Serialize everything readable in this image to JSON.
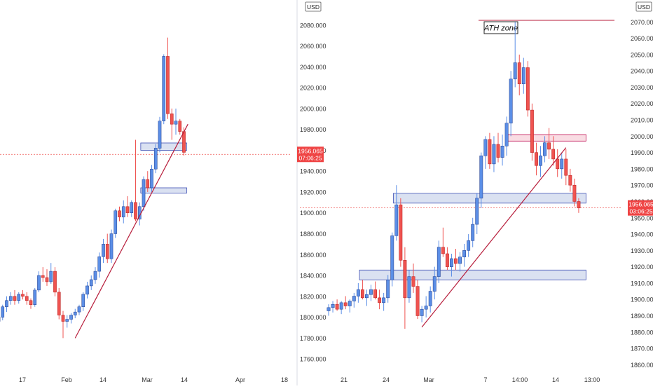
{
  "chart_data": [
    {
      "type": "candlestick",
      "title": "",
      "currency": "USD",
      "ylim": [
        1750,
        2100
      ],
      "y_ticks": [
        "1760.000",
        "1780.000",
        "1800.000",
        "1820.000",
        "1840.000",
        "1860.000",
        "1880.000",
        "1900.000",
        "1920.000",
        "1940.000",
        "1960.000",
        "1980.000",
        "2000.000",
        "2020.000",
        "2040.000",
        "2060.000",
        "2080.000"
      ],
      "x_ticks": [
        "17",
        "Feb",
        "14",
        "Mar",
        "14",
        "Apr",
        "18"
      ],
      "grid": false,
      "price_marker": {
        "price": 1956.065,
        "label": "1956.065",
        "timer": "07:06:25"
      },
      "candles": [
        [
          1796,
          1802,
          1790,
          1800
        ],
        [
          1800,
          1812,
          1797,
          1810
        ],
        [
          1810,
          1820,
          1805,
          1816
        ],
        [
          1816,
          1824,
          1812,
          1820
        ],
        [
          1820,
          1826,
          1812,
          1816
        ],
        [
          1816,
          1824,
          1813,
          1822
        ],
        [
          1822,
          1826,
          1817,
          1820
        ],
        [
          1820,
          1824,
          1812,
          1816
        ],
        [
          1816,
          1818,
          1808,
          1812
        ],
        [
          1812,
          1828,
          1810,
          1826
        ],
        [
          1826,
          1844,
          1824,
          1840
        ],
        [
          1840,
          1848,
          1834,
          1838
        ],
        [
          1838,
          1846,
          1830,
          1834
        ],
        [
          1834,
          1852,
          1832,
          1844
        ],
        [
          1844,
          1848,
          1820,
          1824
        ],
        [
          1824,
          1828,
          1798,
          1802
        ],
        [
          1802,
          1806,
          1780,
          1796
        ],
        [
          1796,
          1802,
          1790,
          1798
        ],
        [
          1798,
          1804,
          1794,
          1802
        ],
        [
          1802,
          1808,
          1799,
          1805
        ],
        [
          1805,
          1812,
          1802,
          1810
        ],
        [
          1810,
          1824,
          1806,
          1822
        ],
        [
          1822,
          1834,
          1818,
          1830
        ],
        [
          1830,
          1840,
          1826,
          1836
        ],
        [
          1836,
          1848,
          1832,
          1844
        ],
        [
          1844,
          1862,
          1838,
          1858
        ],
        [
          1858,
          1875,
          1852,
          1870
        ],
        [
          1870,
          1880,
          1852,
          1856
        ],
        [
          1856,
          1884,
          1852,
          1880
        ],
        [
          1880,
          1904,
          1876,
          1902
        ],
        [
          1902,
          1906,
          1892,
          1896
        ],
        [
          1896,
          1912,
          1890,
          1906
        ],
        [
          1906,
          1916,
          1896,
          1900
        ],
        [
          1900,
          1912,
          1896,
          1910
        ],
        [
          1910,
          1970,
          1892,
          1894
        ],
        [
          1894,
          1910,
          1888,
          1906
        ],
        [
          1906,
          1935,
          1902,
          1932
        ],
        [
          1932,
          1940,
          1920,
          1924
        ],
        [
          1924,
          1946,
          1920,
          1942
        ],
        [
          1942,
          1966,
          1938,
          1962
        ],
        [
          1962,
          1992,
          1958,
          1988
        ],
        [
          1988,
          2052,
          1985,
          2050
        ],
        [
          2050,
          2068,
          1990,
          1995
        ],
        [
          1995,
          2000,
          1970,
          1985
        ],
        [
          1985,
          2000,
          1975,
          1988
        ],
        [
          1988,
          1990,
          1975,
          1978
        ],
        [
          1978,
          1982,
          1955,
          1958
        ]
      ],
      "zones": [
        {
          "from_index": 36,
          "to_index": 46,
          "low": 1960,
          "high": 1967
        },
        {
          "from_index": 36,
          "to_index": 46,
          "low": 1919,
          "high": 1924
        }
      ],
      "trendlines": [
        {
          "from_index": 19,
          "from_price": 1780,
          "to_index": 47,
          "to_price": 1985
        }
      ]
    },
    {
      "type": "candlestick",
      "title": "",
      "currency": "USD",
      "ylim": [
        1855,
        2080
      ],
      "y_ticks": [
        "1860.000",
        "1870.000",
        "1880.000",
        "1890.000",
        "1900.000",
        "1910.000",
        "1920.000",
        "1930.000",
        "1940.000",
        "1950.000",
        "1960.000",
        "1970.000",
        "1980.000",
        "1990.000",
        "2000.000",
        "2010.000",
        "2020.000",
        "2030.000",
        "2040.000",
        "2050.000",
        "2060.000",
        "2070.000"
      ],
      "x_ticks": [
        "21",
        "24",
        "Mar",
        "7",
        "14:00",
        "14",
        "13:00"
      ],
      "grid": false,
      "price_marker": {
        "price": 1956.065,
        "label": "1956.065",
        "timer": "03:06:25"
      },
      "candles": [
        [
          1893,
          1897,
          1890,
          1895
        ],
        [
          1895,
          1899,
          1892,
          1897
        ],
        [
          1897,
          1900,
          1893,
          1894
        ],
        [
          1894,
          1899,
          1891,
          1898
        ],
        [
          1898,
          1902,
          1894,
          1896
        ],
        [
          1896,
          1900,
          1892,
          1899
        ],
        [
          1899,
          1904,
          1895,
          1902
        ],
        [
          1902,
          1910,
          1898,
          1906
        ],
        [
          1906,
          1912,
          1900,
          1901
        ],
        [
          1901,
          1906,
          1896,
          1903
        ],
        [
          1903,
          1909,
          1899,
          1906
        ],
        [
          1906,
          1911,
          1900,
          1901
        ],
        [
          1901,
          1906,
          1894,
          1898
        ],
        [
          1898,
          1904,
          1893,
          1901
        ],
        [
          1901,
          1915,
          1898,
          1912
        ],
        [
          1912,
          1941,
          1908,
          1939
        ],
        [
          1939,
          1970,
          1936,
          1958
        ],
        [
          1958,
          1962,
          1920,
          1924
        ],
        [
          1924,
          1932,
          1882,
          1901
        ],
        [
          1901,
          1918,
          1898,
          1914
        ],
        [
          1914,
          1922,
          1904,
          1908
        ],
        [
          1908,
          1912,
          1888,
          1890
        ],
        [
          1890,
          1896,
          1886,
          1894
        ],
        [
          1894,
          1902,
          1889,
          1896
        ],
        [
          1896,
          1908,
          1892,
          1905
        ],
        [
          1905,
          1920,
          1900,
          1914
        ],
        [
          1914,
          1936,
          1910,
          1932
        ],
        [
          1932,
          1944,
          1926,
          1928
        ],
        [
          1928,
          1932,
          1918,
          1920
        ],
        [
          1920,
          1928,
          1914,
          1925
        ],
        [
          1925,
          1931,
          1918,
          1922
        ],
        [
          1922,
          1929,
          1917,
          1926
        ],
        [
          1926,
          1934,
          1920,
          1930
        ],
        [
          1930,
          1940,
          1926,
          1936
        ],
        [
          1936,
          1950,
          1932,
          1946
        ],
        [
          1946,
          1965,
          1940,
          1962
        ],
        [
          1962,
          1990,
          1956,
          1988
        ],
        [
          1988,
          2000,
          1980,
          1998
        ],
        [
          1998,
          2002,
          1980,
          1983
        ],
        [
          1983,
          2000,
          1978,
          1995
        ],
        [
          1995,
          2002,
          1984,
          1987
        ],
        [
          1987,
          2001,
          1982,
          1994
        ],
        [
          1994,
          2012,
          1988,
          2008
        ],
        [
          2008,
          2040,
          2000,
          2035
        ],
        [
          2035,
          2070,
          2030,
          2045
        ],
        [
          2045,
          2050,
          2025,
          2032
        ],
        [
          2032,
          2048,
          2026,
          2042
        ],
        [
          2042,
          2046,
          2012,
          2016
        ],
        [
          2016,
          2020,
          1985,
          1990
        ],
        [
          1990,
          1996,
          1976,
          1982
        ],
        [
          1982,
          1994,
          1975,
          1988
        ],
        [
          1988,
          2000,
          1984,
          1996
        ],
        [
          1996,
          2005,
          1986,
          1992
        ],
        [
          1992,
          2000,
          1982,
          1986
        ],
        [
          1986,
          1992,
          1975,
          1980
        ],
        [
          1980,
          1990,
          1974,
          1986
        ],
        [
          1986,
          1992,
          1970,
          1976
        ],
        [
          1976,
          1980,
          1966,
          1970
        ],
        [
          1970,
          1974,
          1957,
          1960
        ],
        [
          1960,
          1962,
          1953,
          1956
        ]
      ],
      "zones": [
        {
          "from_index": 43,
          "to_index": 60,
          "low": 1997,
          "high": 2001
        },
        {
          "from_index": 16,
          "to_index": 60,
          "low": 1959,
          "high": 1965
        },
        {
          "from_index": 8,
          "to_index": 60,
          "low": 1912,
          "high": 1918
        }
      ],
      "trendlines": [
        {
          "from_index": 22,
          "from_price": 1883,
          "to_index": 56,
          "to_price": 1993
        }
      ],
      "ath_line": {
        "price": 2071,
        "label": "ATH zone"
      }
    }
  ]
}
